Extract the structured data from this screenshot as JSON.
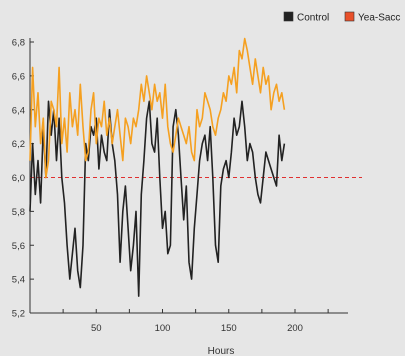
{
  "chart_data": {
    "type": "line",
    "title": "",
    "xlabel": "Hours",
    "ylabel": "",
    "xlim": [
      0,
      240
    ],
    "ylim": [
      5.2,
      6.8
    ],
    "x_ticks": [
      50,
      100,
      150,
      200
    ],
    "y_ticks": [
      5.2,
      5.4,
      5.6,
      5.8,
      6.0,
      6.2,
      6.4,
      6.6,
      6.8
    ],
    "x_tick_labels": [
      "50",
      "100",
      "150",
      "200"
    ],
    "y_tick_labels": [
      "5,2",
      "5,4",
      "5,6",
      "5,8",
      "6,0",
      "6,2",
      "6,4",
      "6,6",
      "6,8"
    ],
    "grid": false,
    "legend_position": "top-right",
    "reference_line": {
      "y": 6.0,
      "color": "#e03030",
      "style": "dashed"
    },
    "series": [
      {
        "name": "Control",
        "color": "#222222",
        "legend_color": "#222222",
        "x": [
          0,
          2,
          4,
          6,
          8,
          10,
          12,
          14,
          16,
          18,
          20,
          22,
          24,
          26,
          28,
          30,
          32,
          34,
          36,
          38,
          40,
          42,
          44,
          46,
          48,
          50,
          52,
          54,
          56,
          58,
          60,
          62,
          64,
          66,
          68,
          70,
          72,
          74,
          76,
          78,
          80,
          82,
          84,
          86,
          88,
          90,
          92,
          94,
          96,
          98,
          100,
          102,
          104,
          106,
          108,
          110,
          112,
          114,
          116,
          118,
          120,
          122,
          124,
          126,
          128,
          130,
          132,
          134,
          136,
          138,
          140,
          142,
          144,
          146,
          148,
          150,
          152,
          154,
          156,
          158,
          160,
          162,
          164,
          166,
          168,
          170,
          172,
          174,
          176,
          178,
          180,
          182,
          184,
          186,
          188,
          190,
          192
        ],
        "y": [
          5.8,
          6.2,
          5.9,
          6.1,
          5.85,
          6.3,
          6.0,
          6.45,
          6.25,
          6.4,
          6.1,
          6.35,
          6.0,
          5.85,
          5.6,
          5.4,
          5.55,
          5.7,
          5.45,
          5.35,
          5.6,
          6.2,
          6.1,
          6.3,
          6.25,
          6.35,
          6.05,
          6.25,
          6.15,
          6.1,
          6.4,
          6.2,
          6.1,
          5.9,
          5.5,
          5.8,
          5.95,
          5.7,
          5.45,
          5.6,
          5.8,
          5.3,
          5.9,
          6.1,
          6.35,
          6.45,
          6.2,
          6.15,
          6.35,
          6.0,
          5.7,
          5.8,
          5.55,
          5.6,
          6.3,
          6.4,
          6.25,
          6.0,
          5.75,
          5.95,
          5.5,
          5.4,
          5.7,
          5.9,
          6.1,
          6.2,
          6.25,
          6.1,
          6.3,
          6.0,
          5.6,
          5.5,
          5.95,
          6.05,
          6.1,
          6.0,
          6.15,
          6.35,
          6.25,
          6.3,
          6.45,
          6.3,
          6.1,
          6.2,
          6.15,
          6.0,
          5.9,
          5.85,
          6.0,
          6.15,
          6.1,
          6.05,
          6.0,
          5.95,
          6.25,
          6.1,
          6.2
        ]
      },
      {
        "name": "Yea-Sacc",
        "color": "#f5a020",
        "legend_color": "#e8502a",
        "x": [
          0,
          2,
          4,
          6,
          8,
          10,
          12,
          14,
          16,
          18,
          20,
          22,
          24,
          26,
          28,
          30,
          32,
          34,
          36,
          38,
          40,
          42,
          44,
          46,
          48,
          50,
          52,
          54,
          56,
          58,
          60,
          62,
          64,
          66,
          68,
          70,
          72,
          74,
          76,
          78,
          80,
          82,
          84,
          86,
          88,
          90,
          92,
          94,
          96,
          98,
          100,
          102,
          104,
          106,
          108,
          110,
          112,
          114,
          116,
          118,
          120,
          122,
          124,
          126,
          128,
          130,
          132,
          134,
          136,
          138,
          140,
          142,
          144,
          146,
          148,
          150,
          152,
          154,
          156,
          158,
          160,
          162,
          164,
          166,
          168,
          170,
          172,
          174,
          176,
          178,
          180,
          182,
          184,
          186,
          188,
          190,
          192
        ],
        "y": [
          6.1,
          6.65,
          6.3,
          6.5,
          6.2,
          6.35,
          6.0,
          6.1,
          6.45,
          6.4,
          6.3,
          6.65,
          6.2,
          6.35,
          6.15,
          6.5,
          6.3,
          6.4,
          6.25,
          6.55,
          6.3,
          6.1,
          6.15,
          6.4,
          6.5,
          6.2,
          6.35,
          6.3,
          6.45,
          6.25,
          6.35,
          6.2,
          6.3,
          6.4,
          6.25,
          6.1,
          6.35,
          6.3,
          6.2,
          6.35,
          6.3,
          6.4,
          6.55,
          6.45,
          6.6,
          6.5,
          6.4,
          6.55,
          6.45,
          6.5,
          6.35,
          6.55,
          6.3,
          6.2,
          6.15,
          6.25,
          6.35,
          6.3,
          6.25,
          6.2,
          6.3,
          6.15,
          6.1,
          6.4,
          6.3,
          6.35,
          6.5,
          6.45,
          6.4,
          6.3,
          6.25,
          6.35,
          6.4,
          6.5,
          6.45,
          6.6,
          6.55,
          6.65,
          6.5,
          6.75,
          6.7,
          6.82,
          6.75,
          6.65,
          6.55,
          6.7,
          6.6,
          6.5,
          6.65,
          6.55,
          6.6,
          6.4,
          6.5,
          6.55,
          6.45,
          6.5,
          6.4
        ]
      }
    ]
  }
}
